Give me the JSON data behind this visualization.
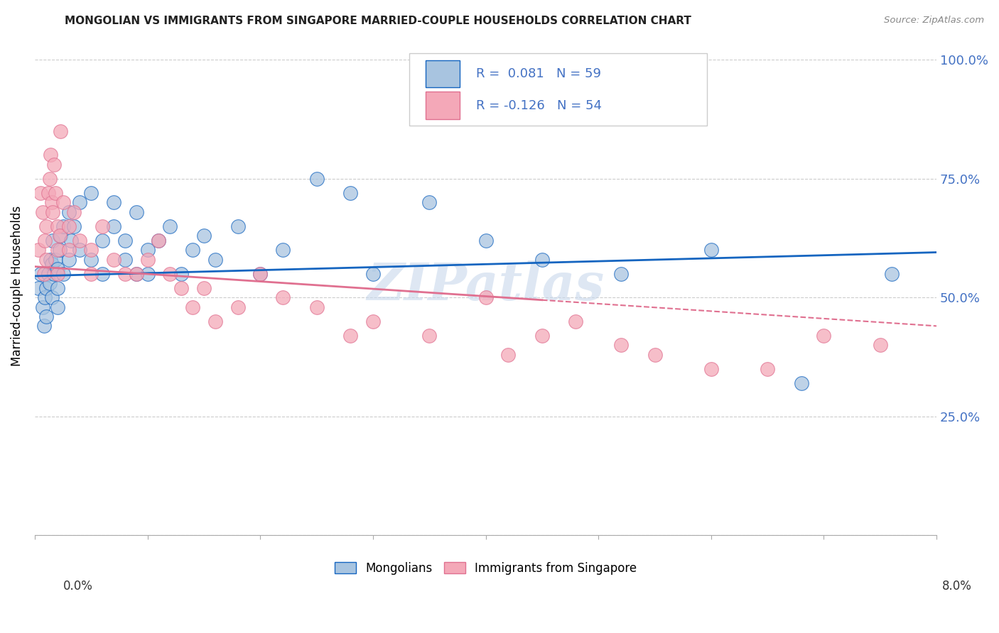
{
  "title": "MONGOLIAN VS IMMIGRANTS FROM SINGAPORE MARRIED-COUPLE HOUSEHOLDS CORRELATION CHART",
  "source": "Source: ZipAtlas.com",
  "ylabel": "Married-couple Households",
  "xmin": 0.0,
  "xmax": 0.08,
  "ymin": 0.0,
  "ymax": 1.05,
  "r_mongolian": 0.081,
  "n_mongolian": 59,
  "r_singapore": -0.126,
  "n_singapore": 54,
  "color_mongolian": "#a8c4e0",
  "color_singapore": "#f4a8b8",
  "line_color_mongolian": "#1565c0",
  "line_color_singapore": "#e07090",
  "watermark": "ZIPatlas",
  "mongolians_x": [
    0.0003,
    0.0005,
    0.0007,
    0.0008,
    0.0009,
    0.001,
    0.001,
    0.0012,
    0.0013,
    0.0014,
    0.0015,
    0.0015,
    0.0016,
    0.0017,
    0.0018,
    0.002,
    0.002,
    0.002,
    0.0022,
    0.0023,
    0.0025,
    0.0025,
    0.003,
    0.003,
    0.0032,
    0.0035,
    0.004,
    0.004,
    0.005,
    0.005,
    0.006,
    0.006,
    0.007,
    0.007,
    0.008,
    0.008,
    0.009,
    0.009,
    0.01,
    0.01,
    0.011,
    0.012,
    0.013,
    0.014,
    0.015,
    0.016,
    0.018,
    0.02,
    0.022,
    0.025,
    0.028,
    0.03,
    0.035,
    0.04,
    0.045,
    0.052,
    0.06,
    0.068,
    0.076
  ],
  "mongolians_y": [
    0.52,
    0.55,
    0.48,
    0.44,
    0.5,
    0.52,
    0.46,
    0.55,
    0.53,
    0.58,
    0.57,
    0.5,
    0.62,
    0.55,
    0.58,
    0.52,
    0.56,
    0.48,
    0.6,
    0.63,
    0.55,
    0.65,
    0.68,
    0.58,
    0.62,
    0.65,
    0.7,
    0.6,
    0.72,
    0.58,
    0.55,
    0.62,
    0.65,
    0.7,
    0.58,
    0.62,
    0.55,
    0.68,
    0.6,
    0.55,
    0.62,
    0.65,
    0.55,
    0.6,
    0.63,
    0.58,
    0.65,
    0.55,
    0.6,
    0.75,
    0.72,
    0.55,
    0.7,
    0.62,
    0.58,
    0.55,
    0.6,
    0.32,
    0.55
  ],
  "singapore_x": [
    0.0003,
    0.0005,
    0.0007,
    0.0008,
    0.0009,
    0.001,
    0.001,
    0.0012,
    0.0013,
    0.0014,
    0.0015,
    0.0016,
    0.0017,
    0.0018,
    0.002,
    0.002,
    0.002,
    0.0022,
    0.0023,
    0.0025,
    0.003,
    0.003,
    0.0035,
    0.004,
    0.005,
    0.005,
    0.006,
    0.007,
    0.008,
    0.009,
    0.01,
    0.011,
    0.012,
    0.013,
    0.014,
    0.015,
    0.016,
    0.018,
    0.02,
    0.022,
    0.025,
    0.028,
    0.03,
    0.035,
    0.04,
    0.042,
    0.045,
    0.048,
    0.052,
    0.055,
    0.06,
    0.065,
    0.07,
    0.075
  ],
  "singapore_y": [
    0.6,
    0.72,
    0.68,
    0.55,
    0.62,
    0.58,
    0.65,
    0.72,
    0.75,
    0.8,
    0.7,
    0.68,
    0.78,
    0.72,
    0.6,
    0.65,
    0.55,
    0.63,
    0.85,
    0.7,
    0.6,
    0.65,
    0.68,
    0.62,
    0.55,
    0.6,
    0.65,
    0.58,
    0.55,
    0.55,
    0.58,
    0.62,
    0.55,
    0.52,
    0.48,
    0.52,
    0.45,
    0.48,
    0.55,
    0.5,
    0.48,
    0.42,
    0.45,
    0.42,
    0.5,
    0.38,
    0.42,
    0.45,
    0.4,
    0.38,
    0.35,
    0.35,
    0.42,
    0.4
  ]
}
